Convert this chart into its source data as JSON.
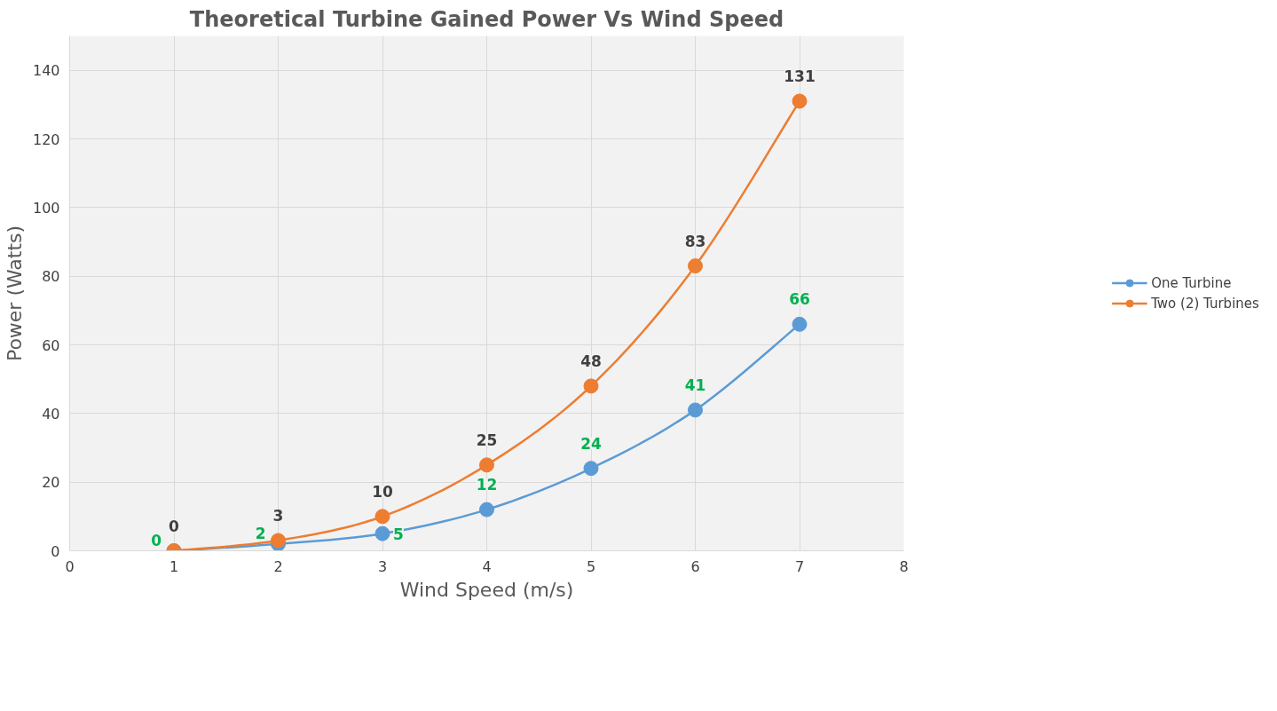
{
  "chart_data": {
    "type": "line",
    "title": "Theoretical Turbine Gained Power Vs Wind Speed",
    "xlabel": "Wind Speed (m/s)",
    "ylabel": "Power (Watts)",
    "x": [
      1,
      2,
      3,
      4,
      5,
      6,
      7
    ],
    "series": [
      {
        "name": "One Turbine",
        "color": "#5b9bd5",
        "values": [
          0,
          2,
          5,
          12,
          24,
          41,
          66
        ]
      },
      {
        "name": "Two (2) Turbines",
        "color": "#ed7d31",
        "values": [
          0,
          3,
          10,
          25,
          48,
          83,
          131
        ]
      }
    ],
    "xlim": [
      0,
      8
    ],
    "xticks": [
      0,
      1,
      2,
      3,
      4,
      5,
      6,
      7,
      8
    ],
    "ylim": [
      0,
      150
    ],
    "yticks": [
      0,
      20,
      40,
      60,
      80,
      100,
      120,
      140
    ],
    "grid": true,
    "legend": "right",
    "marker": "circle",
    "line_style": "solid",
    "data_labels": true
  }
}
